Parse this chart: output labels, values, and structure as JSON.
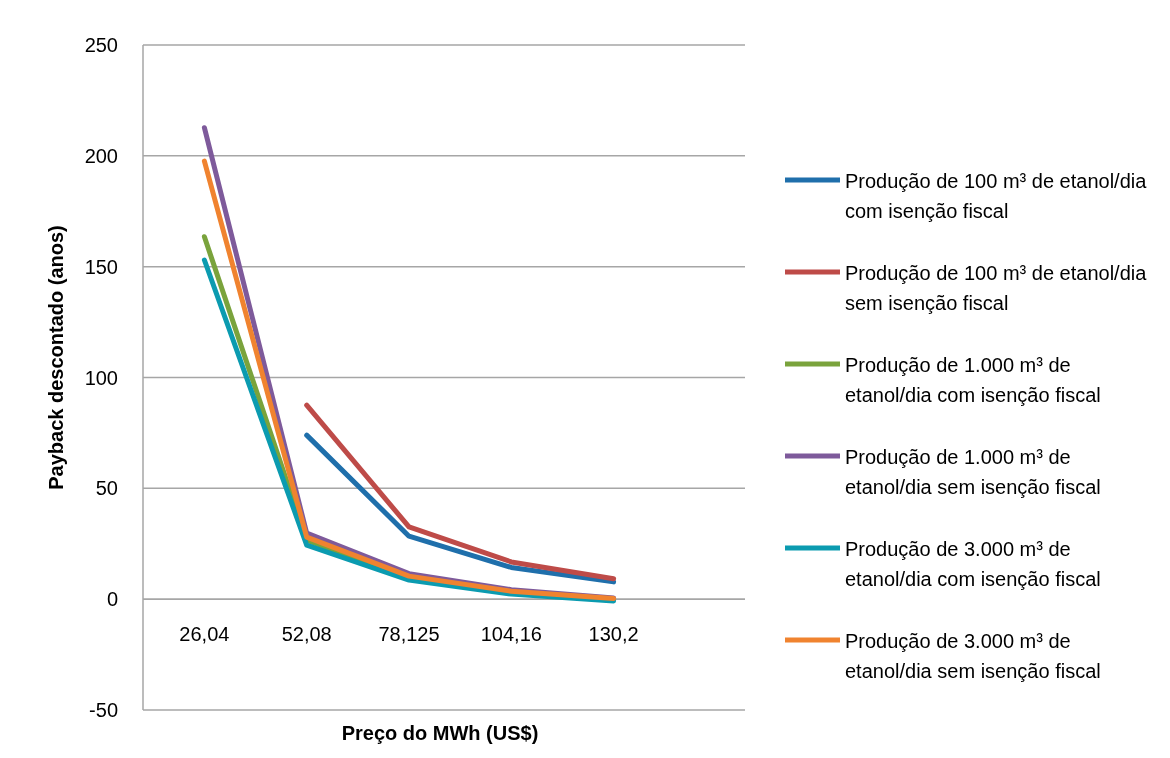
{
  "chart_data": {
    "type": "line",
    "xlabel": "Preço do MWh (US$)",
    "ylabel": "Payback descontado (anos)",
    "categories": [
      "26,04",
      "52,08",
      "78,125",
      "104,16",
      "130,2"
    ],
    "ylim": [
      -50,
      250
    ],
    "yticks": [
      -50,
      0,
      50,
      100,
      150,
      200,
      250
    ],
    "grid": "y",
    "legend": "right",
    "marker": "none",
    "line_style": "solid",
    "series": [
      {
        "name": "Produção de 100 m³ de etanol/dia com isenção fiscal",
        "color": "#1f6fab",
        "values": [
          null,
          74,
          28.4,
          14.3,
          7.8
        ]
      },
      {
        "name": "Produção de 100 m³ de etanol/dia sem isenção fiscal",
        "color": "#be4b48",
        "values": [
          null,
          87.5,
          32.6,
          16.8,
          9.2
        ]
      },
      {
        "name": "Produção de 1.000 m³ de etanol/dia com isenção fiscal",
        "color": "#7aa33c",
        "values": [
          163.5,
          26.6,
          9.5,
          3,
          0
        ]
      },
      {
        "name": "Produção de 1.000 m³ de etanol/dia sem isenção fiscal",
        "color": "#7e5a9b",
        "values": [
          212.7,
          29.8,
          11.5,
          4.3,
          0.5
        ]
      },
      {
        "name": "Produção de 3.000 m³ de etanol/dia com isenção fiscal",
        "color": "#0b9bb0",
        "values": [
          153,
          24.4,
          8.6,
          2.3,
          -0.8
        ]
      },
      {
        "name": "Produção de 3.000 m³ de etanol/dia sem isenção fiscal",
        "color": "#f0832f",
        "values": [
          197.6,
          28,
          10.4,
          3.6,
          0.3
        ]
      }
    ]
  }
}
